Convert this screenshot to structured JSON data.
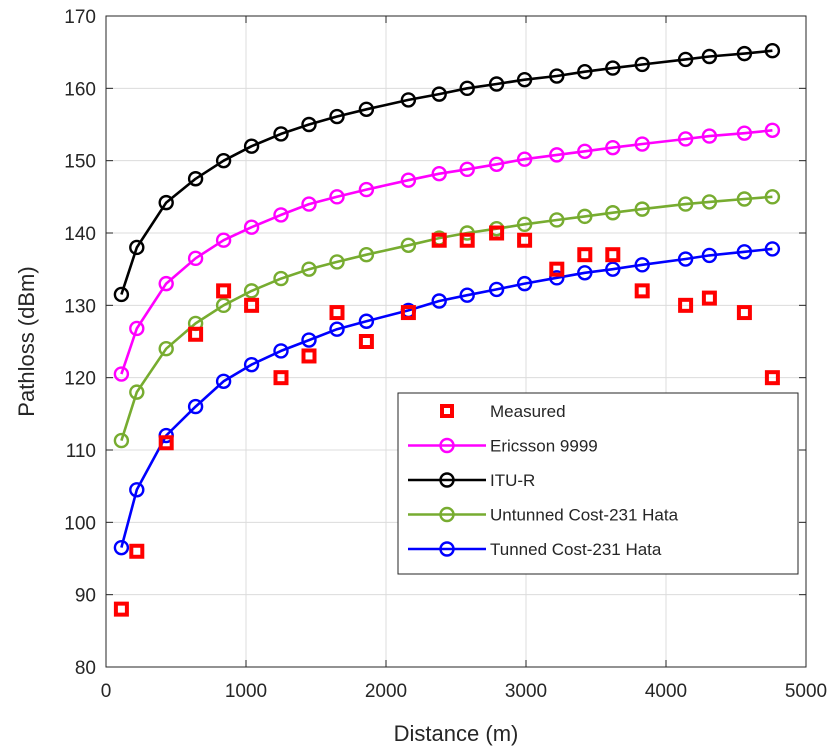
{
  "chart_data": {
    "type": "line",
    "title": "",
    "xlabel": "Distance (m)",
    "ylabel": "Pathloss (dBm)",
    "xlim": [
      0,
      5000
    ],
    "ylim": [
      80,
      170
    ],
    "xticks": [
      0,
      1000,
      2000,
      3000,
      4000,
      5000
    ],
    "yticks": [
      80,
      90,
      100,
      110,
      120,
      130,
      140,
      150,
      160,
      170
    ],
    "xtick_labels": [
      "0",
      "1000",
      "2000",
      "3000",
      "4000",
      "5000"
    ],
    "ytick_labels": [
      "80",
      "90",
      "100",
      "110",
      "120",
      "130",
      "140",
      "150",
      "160",
      "170"
    ],
    "grid": true,
    "legend_position": "bottom-right",
    "series": [
      {
        "name": "Measured",
        "color": "#ff0000",
        "style": "markers-square",
        "x": [
          110,
          220,
          430,
          640,
          840,
          1040,
          1250,
          1450,
          1650,
          1860,
          2160,
          2380,
          2580,
          2790,
          2990,
          3220,
          3420,
          3620,
          3830,
          4140,
          4310,
          4560,
          4760
        ],
        "y": [
          88,
          96,
          111,
          126,
          132,
          130,
          120,
          123,
          129,
          125,
          129,
          139,
          139,
          140,
          139,
          135,
          137,
          137,
          132,
          130,
          131,
          129,
          120
        ]
      },
      {
        "name": "Ericsson 9999",
        "color": "#ff00ff",
        "style": "line-circle",
        "x": [
          110,
          220,
          430,
          640,
          840,
          1040,
          1250,
          1450,
          1650,
          1860,
          2160,
          2380,
          2580,
          2790,
          2990,
          3220,
          3420,
          3620,
          3830,
          4140,
          4310,
          4560,
          4760
        ],
        "y": [
          120.5,
          126.8,
          133,
          136.5,
          139,
          140.8,
          142.5,
          144,
          145,
          146,
          147.3,
          148.2,
          148.8,
          149.5,
          150.2,
          150.8,
          151.3,
          151.8,
          152.3,
          153,
          153.4,
          153.8,
          154.2
        ]
      },
      {
        "name": "ITU-R",
        "color": "#000000",
        "style": "line-circle",
        "x": [
          110,
          220,
          430,
          640,
          840,
          1040,
          1250,
          1450,
          1650,
          1860,
          2160,
          2380,
          2580,
          2790,
          2990,
          3220,
          3420,
          3620,
          3830,
          4140,
          4310,
          4560,
          4760
        ],
        "y": [
          131.5,
          138,
          144.2,
          147.5,
          150,
          152,
          153.7,
          155,
          156.1,
          157.1,
          158.4,
          159.2,
          160,
          160.6,
          161.2,
          161.7,
          162.3,
          162.8,
          163.3,
          164,
          164.4,
          164.8,
          165.2
        ]
      },
      {
        "name": "Untunned Cost-231 Hata",
        "color": "#77ac30",
        "style": "line-circle",
        "x": [
          110,
          220,
          430,
          640,
          840,
          1040,
          1250,
          1450,
          1650,
          1860,
          2160,
          2380,
          2580,
          2790,
          2990,
          3220,
          3420,
          3620,
          3830,
          4140,
          4310,
          4560,
          4760
        ],
        "y": [
          111.3,
          118,
          124,
          127.5,
          130,
          132,
          133.7,
          135,
          136,
          137,
          138.3,
          139.3,
          140,
          140.6,
          141.2,
          141.8,
          142.3,
          142.8,
          143.3,
          144,
          144.3,
          144.7,
          145
        ]
      },
      {
        "name": "Tunned Cost-231 Hata",
        "color": "#0000ff",
        "style": "line-circle",
        "x": [
          110,
          220,
          430,
          640,
          840,
          1040,
          1250,
          1450,
          1650,
          1860,
          2160,
          2380,
          2580,
          2790,
          2990,
          3220,
          3420,
          3620,
          3830,
          4140,
          4310,
          4560,
          4760
        ],
        "y": [
          96.5,
          104.5,
          112,
          116,
          119.5,
          121.8,
          123.7,
          125.2,
          126.7,
          127.8,
          129.3,
          130.6,
          131.4,
          132.2,
          133,
          133.8,
          134.5,
          135,
          135.6,
          136.4,
          136.9,
          137.4,
          137.8
        ]
      }
    ],
    "legend_order": [
      0,
      1,
      2,
      3,
      4
    ]
  }
}
